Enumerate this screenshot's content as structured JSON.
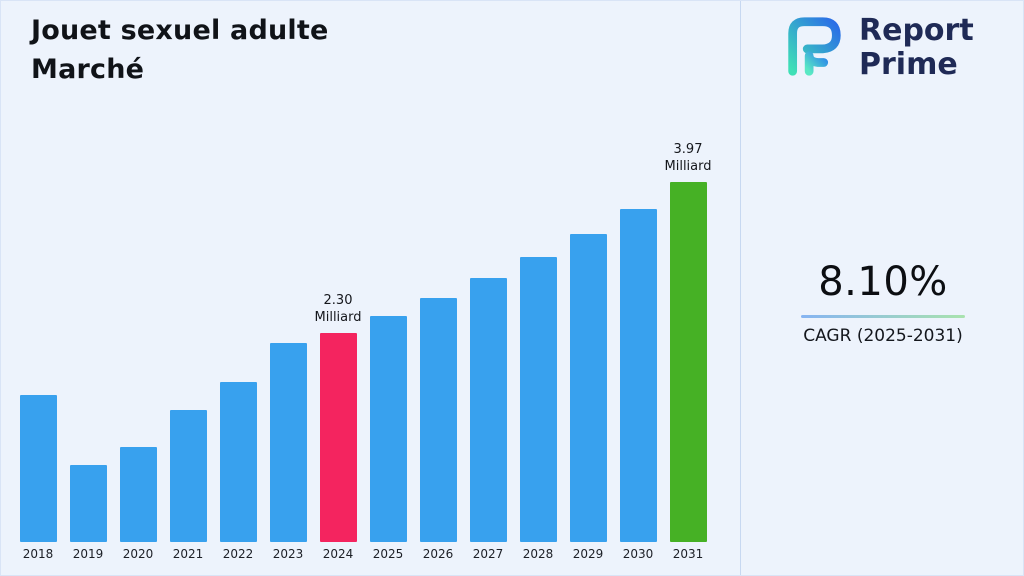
{
  "header": {
    "title_line1": "Jouet sexuel adulte",
    "title_line2": "Marché"
  },
  "brand": {
    "name_line1": "Report",
    "name_line2": "Prime",
    "colors": {
      "text": "#1F2A56",
      "gradient_start": "#3FE0B6",
      "gradient_end": "#2A6BE8"
    }
  },
  "kpi": {
    "value": "8.10%",
    "label": "CAGR (2025-2031)"
  },
  "chart_data": {
    "type": "bar",
    "title": "Jouet sexuel adulte Marché",
    "unit": "Milliard",
    "categories": [
      "2018",
      "2019",
      "2020",
      "2021",
      "2022",
      "2023",
      "2024",
      "2025",
      "2026",
      "2027",
      "2028",
      "2029",
      "2030",
      "2031"
    ],
    "values": [
      1.62,
      0.85,
      1.05,
      1.46,
      1.76,
      2.19,
      2.3,
      2.49,
      2.69,
      2.91,
      3.14,
      3.4,
      3.67,
      3.97
    ],
    "bar_color": "#38A1EE",
    "highlight_colors": {
      "2024": "#F4245F",
      "2031": "#46B125"
    },
    "annotations": [
      {
        "category": "2024",
        "lines": [
          "2.30",
          "Milliard"
        ]
      },
      {
        "category": "2031",
        "lines": [
          "3.97",
          "Milliard"
        ]
      }
    ],
    "xlabel": "",
    "ylabel": "",
    "ylim": [
      0,
      4.2
    ],
    "gridlines": false,
    "y_axis_visible": false,
    "legend": "none"
  }
}
